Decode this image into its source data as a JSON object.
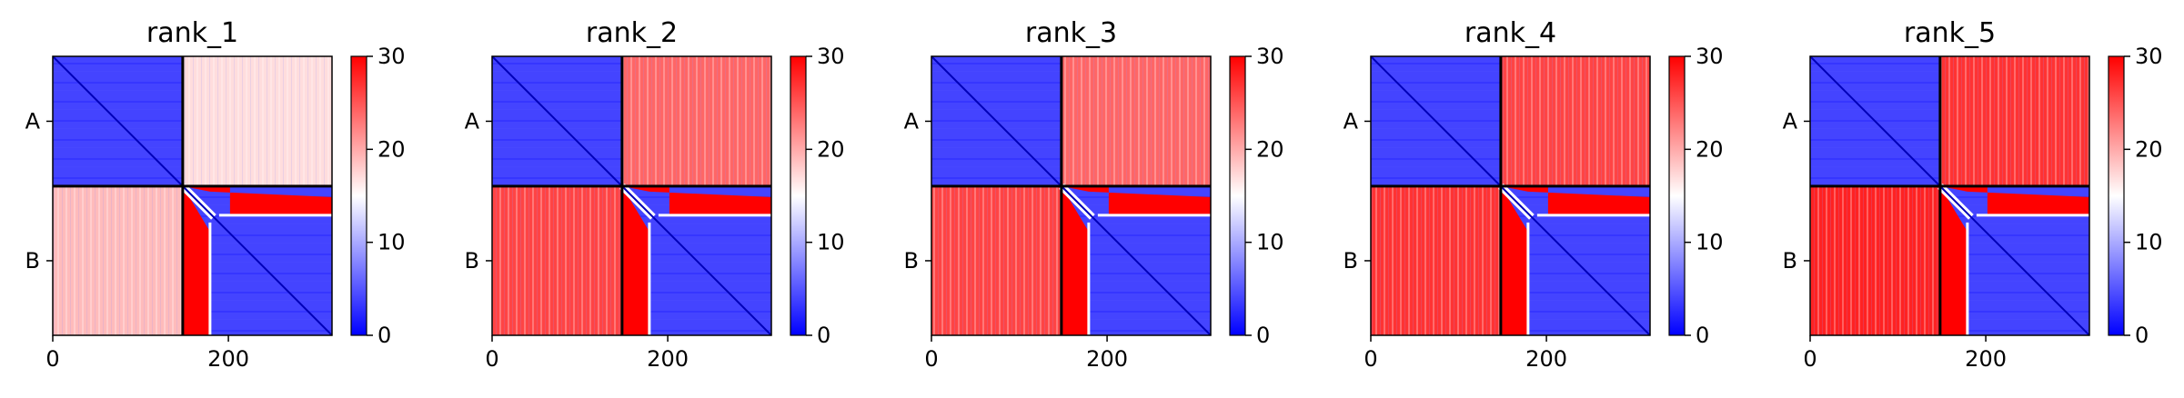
{
  "chart_data": [
    {
      "type": "heatmap",
      "title": "rank_1",
      "x_ticks": [
        0,
        200
      ],
      "y_tick_labels": [
        "A",
        "B"
      ],
      "chain_boundary": 148,
      "length": 318,
      "colorbar": {
        "ticks": [
          0,
          10,
          20,
          30
        ],
        "range": [
          0,
          30
        ],
        "colormap": "bwr"
      },
      "blocks": {
        "AA": 4,
        "AB": 17,
        "BA": 19,
        "BB": 4
      }
    },
    {
      "type": "heatmap",
      "title": "rank_2",
      "x_ticks": [
        0,
        200
      ],
      "y_tick_labels": [
        "A",
        "B"
      ],
      "chain_boundary": 148,
      "length": 318,
      "colorbar": {
        "ticks": [
          0,
          10,
          20,
          30
        ],
        "range": [
          0,
          30
        ],
        "colormap": "bwr"
      },
      "blocks": {
        "AA": 4,
        "AB": 24,
        "BA": 26,
        "BB": 4
      }
    },
    {
      "type": "heatmap",
      "title": "rank_3",
      "x_ticks": [
        0,
        200
      ],
      "y_tick_labels": [
        "A",
        "B"
      ],
      "chain_boundary": 148,
      "length": 318,
      "colorbar": {
        "ticks": [
          0,
          10,
          20,
          30
        ],
        "range": [
          0,
          30
        ],
        "colormap": "bwr"
      },
      "blocks": {
        "AA": 4,
        "AB": 24,
        "BA": 26,
        "BB": 4
      }
    },
    {
      "type": "heatmap",
      "title": "rank_4",
      "x_ticks": [
        0,
        200
      ],
      "y_tick_labels": [
        "A",
        "B"
      ],
      "chain_boundary": 148,
      "length": 318,
      "colorbar": {
        "ticks": [
          0,
          10,
          20,
          30
        ],
        "range": [
          0,
          30
        ],
        "colormap": "bwr"
      },
      "blocks": {
        "AA": 4,
        "AB": 26,
        "BA": 27,
        "BB": 4
      }
    },
    {
      "type": "heatmap",
      "title": "rank_5",
      "x_ticks": [
        0,
        200
      ],
      "y_tick_labels": [
        "A",
        "B"
      ],
      "chain_boundary": 148,
      "length": 318,
      "colorbar": {
        "ticks": [
          0,
          10,
          20,
          30
        ],
        "range": [
          0,
          30
        ],
        "colormap": "bwr"
      },
      "blocks": {
        "AA": 4,
        "AB": 27,
        "BA": 28,
        "BB": 4
      }
    }
  ]
}
